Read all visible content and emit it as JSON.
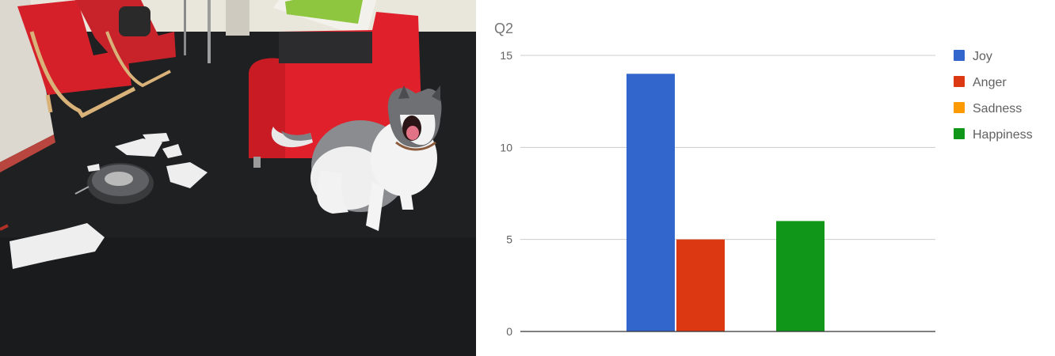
{
  "chart_data": {
    "type": "bar",
    "title": "Q2",
    "xlabel": "",
    "ylabel": "",
    "ylim": [
      0,
      15
    ],
    "yticks": [
      0,
      5,
      10,
      15
    ],
    "grid": true,
    "legend_position": "right",
    "series": [
      {
        "name": "Joy",
        "color": "#3366cc",
        "value": 14
      },
      {
        "name": "Anger",
        "color": "#dc3912",
        "value": 5
      },
      {
        "name": "Sadness",
        "color": "#ff9900",
        "value": 0
      },
      {
        "name": "Happiness",
        "color": "#109618",
        "value": 6
      }
    ]
  },
  "photo": {
    "icon": "husky-dog-photo"
  }
}
